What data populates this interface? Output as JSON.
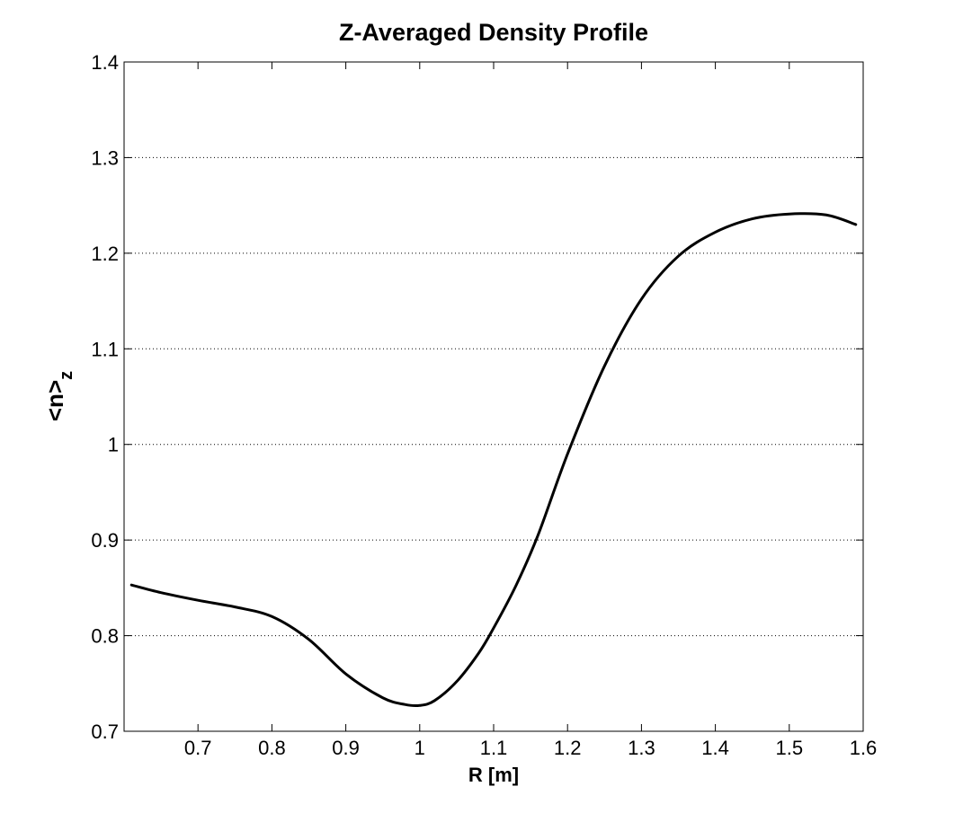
{
  "chart_data": {
    "type": "line",
    "title": "Z-Averaged Density Profile",
    "xlabel": "R [m]",
    "ylabel_main": "<n>",
    "ylabel_sub": "z",
    "xlim": [
      0.6,
      1.6
    ],
    "ylim": [
      0.7,
      1.4
    ],
    "xticks": [
      0.7,
      0.8,
      0.9,
      1,
      1.1,
      1.2,
      1.3,
      1.4,
      1.5,
      1.6
    ],
    "xtick_labels": [
      "0.7",
      "0.8",
      "0.9",
      "1",
      "1.1",
      "1.2",
      "1.3",
      "1.4",
      "1.5",
      "1.6"
    ],
    "yticks": [
      0.7,
      0.8,
      0.9,
      1,
      1.1,
      1.2,
      1.3,
      1.4
    ],
    "ytick_labels": [
      "0.7",
      "0.8",
      "0.9",
      "1",
      "1.1",
      "1.2",
      "1.3",
      "1.4"
    ],
    "ygrid": true,
    "xgrid": false,
    "line_color": "#000000",
    "series": [
      {
        "x": [
          0.61,
          0.65,
          0.7,
          0.75,
          0.8,
          0.85,
          0.9,
          0.95,
          0.98,
          1.0,
          1.02,
          1.05,
          1.08,
          1.1,
          1.13,
          1.16,
          1.2,
          1.25,
          1.3,
          1.35,
          1.4,
          1.45,
          1.5,
          1.55,
          1.59
        ],
        "y": [
          0.853,
          0.845,
          0.837,
          0.83,
          0.82,
          0.796,
          0.76,
          0.735,
          0.728,
          0.727,
          0.732,
          0.752,
          0.782,
          0.808,
          0.852,
          0.905,
          0.99,
          1.082,
          1.152,
          1.197,
          1.222,
          1.236,
          1.241,
          1.24,
          1.23
        ]
      }
    ]
  }
}
